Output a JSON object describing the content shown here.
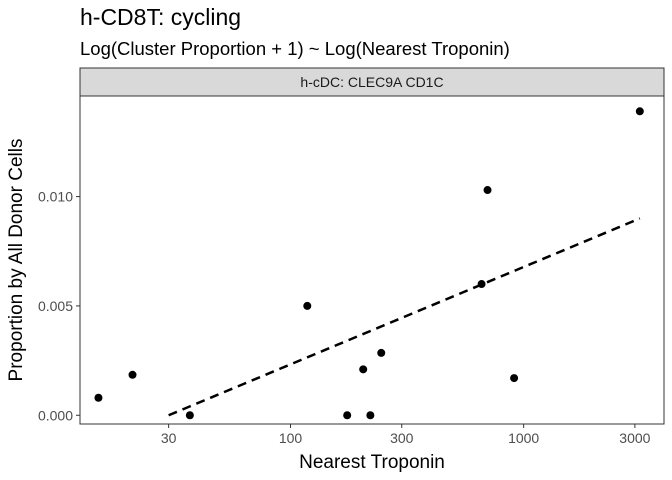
{
  "chart_data": {
    "type": "scatter",
    "title": "h-CD8T: cycling",
    "subtitle": "Log(Cluster Proportion + 1) ~ Log(Nearest Troponin)",
    "facet_label": "h-cDC: CLEC9A CD1C",
    "xlabel": "Nearest Troponin",
    "ylabel": "Proportion by All Donor Cells",
    "x_scale": "log10",
    "xlim": [
      12.5,
      4000
    ],
    "ylim": [
      -0.0004,
      0.0146
    ],
    "x_ticks": [
      30,
      100,
      300,
      1000,
      3000
    ],
    "x_tick_labels": [
      "30",
      "100",
      "300",
      "1000",
      "3000"
    ],
    "y_ticks": [
      0.0,
      0.005,
      0.01
    ],
    "y_tick_labels": [
      "0.000",
      "0.005",
      "0.010"
    ],
    "grid": false,
    "points": [
      {
        "x": 15,
        "y": 0.0008
      },
      {
        "x": 21,
        "y": 0.00185
      },
      {
        "x": 37,
        "y": 0.0
      },
      {
        "x": 118,
        "y": 0.005
      },
      {
        "x": 175,
        "y": 0.0
      },
      {
        "x": 205,
        "y": 0.0021
      },
      {
        "x": 220,
        "y": 0.0
      },
      {
        "x": 245,
        "y": 0.00285
      },
      {
        "x": 660,
        "y": 0.006
      },
      {
        "x": 700,
        "y": 0.0103
      },
      {
        "x": 910,
        "y": 0.0017
      },
      {
        "x": 3150,
        "y": 0.0139
      }
    ],
    "trend_line": {
      "style": "dashed",
      "x": [
        30,
        3150
      ],
      "y": [
        0.0,
        0.009
      ]
    },
    "colors": {
      "points": "#000000",
      "line": "#000000",
      "strip_fill": "#d9d9d9",
      "panel_border": "#333333"
    }
  }
}
